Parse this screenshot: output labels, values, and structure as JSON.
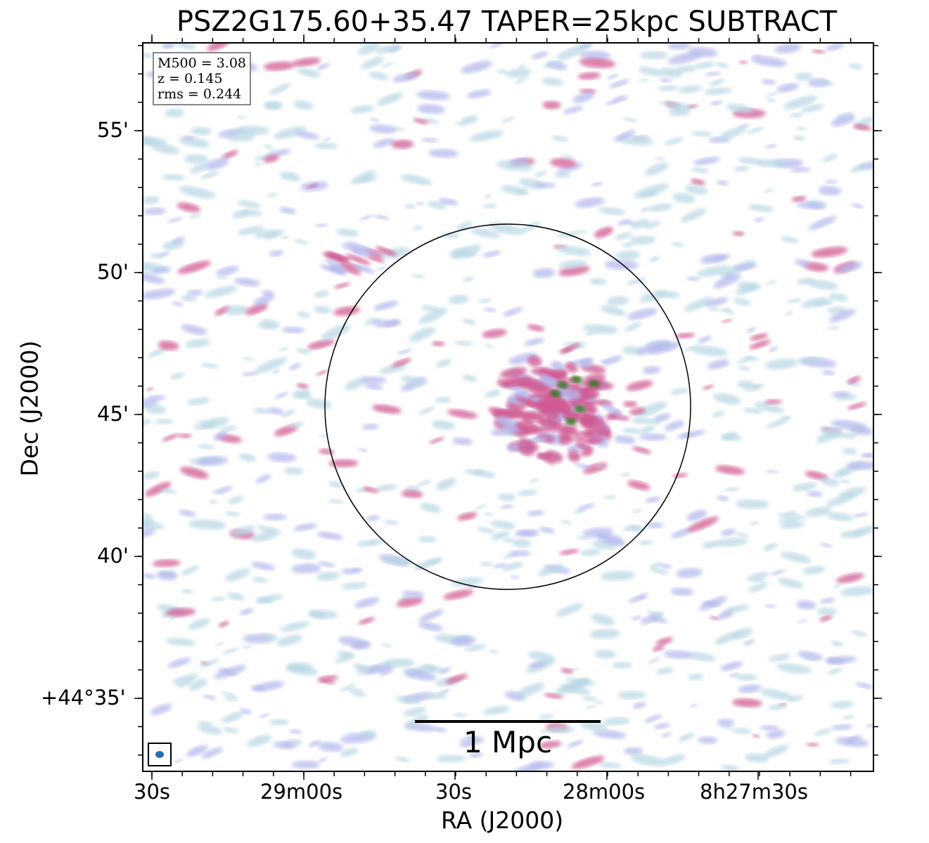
{
  "title": "PSZ2G175.60+35.47 TAPER=25kpc SUBTRACT",
  "xlabel": "RA (J2000)",
  "ylabel": "Dec (J2000)",
  "x_ticks": [
    "30s",
    "29m00s",
    "30s",
    "28m00s",
    "8h27m30s"
  ],
  "y_ticks": [
    "55'",
    "50'",
    "45'",
    "40'",
    "+44°35'"
  ],
  "info": {
    "m500": "M500 = 3.08",
    "z": "z = 0.145",
    "rms": "rms = 0.244"
  },
  "scalebar": {
    "label": "1 Mpc"
  },
  "colors": {
    "low": "#b9d7e4",
    "mid": "#b4b8ec",
    "high": "#d05a92",
    "peak": "#2e7d1d",
    "beam": "#1f6fb4",
    "circle": "#000000"
  }
}
